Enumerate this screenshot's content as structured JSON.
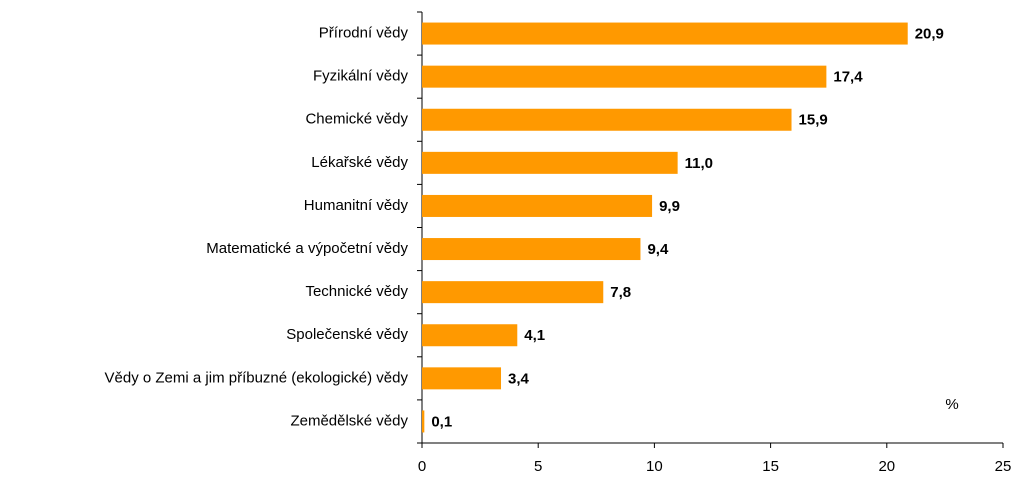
{
  "chart_data": {
    "type": "bar",
    "orientation": "horizontal",
    "categories": [
      "Přírodní vědy",
      "Fyzikální vědy",
      "Chemické vědy",
      "Lékařské vědy",
      "Humanitní vědy",
      "Matematické a výpočetní vědy",
      "Technické vědy",
      "Společenské vědy",
      "Vědy o Zemi a jim příbuzné (ekologické) vědy",
      "Zemědělské vědy"
    ],
    "values": [
      20.9,
      17.4,
      15.9,
      11.0,
      9.9,
      9.4,
      7.8,
      4.1,
      3.4,
      0.1
    ],
    "value_labels": [
      "20,9",
      "17,4",
      "15,9",
      "11,0",
      "9,9",
      "9,4",
      "7,8",
      "4,1",
      "3,4",
      "0,1"
    ],
    "color": "#ff9900",
    "xlim": [
      0,
      25
    ],
    "xticks": [
      0,
      5,
      10,
      15,
      20,
      25
    ],
    "annotation": "%"
  }
}
